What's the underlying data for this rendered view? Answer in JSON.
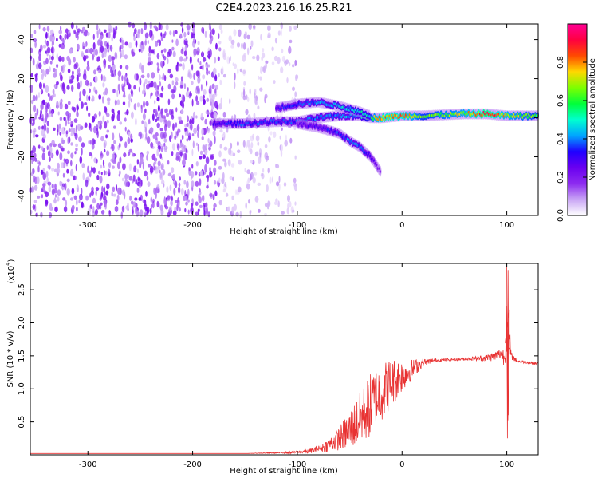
{
  "title": "C2E4.2023.216.16.25.R21",
  "chart_data": [
    {
      "type": "heatmap",
      "xlabel": "Height of straight line (km)",
      "ylabel": "Frequency (Hz)",
      "xlim": [
        -355,
        130
      ],
      "ylim": [
        -50,
        48
      ],
      "xticks": [
        -300,
        -200,
        -100,
        0,
        100
      ],
      "yticks": [
        -40,
        -20,
        0,
        20,
        40
      ],
      "colorbar": {
        "label": "Normalized spectral amplitude",
        "range": [
          0,
          1
        ],
        "ticks": [
          "0.0",
          "0.2",
          "0.4",
          "0.6",
          "0.8"
        ],
        "tick_values": [
          0,
          0.2,
          0.4,
          0.6,
          0.8
        ]
      },
      "colormap": [
        "#ffffff",
        "#c9a5f5",
        "#8d2bf0",
        "#6a00f0",
        "#1f00ff",
        "#00a6ff",
        "#00ffd0",
        "#00ff3a",
        "#7dff00",
        "#ffd800",
        "#ff4a00",
        "#ff0040",
        "#ff0095"
      ],
      "features": [
        {
          "name": "noise",
          "x_range": [
            -355,
            -175
          ],
          "freq_range": [
            -50,
            48
          ],
          "amplitude": 0.15
        },
        {
          "name": "faint-noise",
          "x_range": [
            -175,
            -100
          ],
          "freq_range": [
            -50,
            48
          ],
          "amplitude": 0.07
        },
        {
          "name": "main-track",
          "x": [
            -180,
            -150,
            -120,
            -100,
            -80,
            -60,
            -40,
            -30,
            -20,
            0,
            20,
            60,
            80,
            100,
            130
          ],
          "freq": [
            -3,
            -3,
            -2,
            -2,
            0,
            1,
            1,
            0,
            0,
            1,
            1,
            2,
            2,
            1,
            1
          ],
          "amplitude": [
            0.3,
            0.35,
            0.35,
            0.35,
            0.4,
            0.4,
            0.45,
            0.6,
            0.8,
            0.8,
            0.6,
            0.7,
            0.9,
            0.7,
            0.6
          ]
        },
        {
          "name": "upper-branch",
          "x": [
            -120,
            -100,
            -80,
            -60,
            -40,
            -30
          ],
          "freq": [
            5,
            7,
            8,
            6,
            3,
            1
          ],
          "amplitude": [
            0.3,
            0.35,
            0.4,
            0.45,
            0.5,
            0.5
          ]
        },
        {
          "name": "lower-branch",
          "x": [
            -100,
            -80,
            -60,
            -50,
            -40,
            -30,
            -20
          ],
          "freq": [
            -3,
            -5,
            -8,
            -12,
            -15,
            -20,
            -28
          ],
          "amplitude": [
            0.25,
            0.3,
            0.35,
            0.4,
            0.4,
            0.3,
            0.15
          ]
        }
      ]
    },
    {
      "type": "line",
      "xlabel": "Height of straight line (km)",
      "ylabel": "SNR (10 * v/v)",
      "y_multiplier": "(x10",
      "y_exponent": "4",
      "y_multiplier_close": ")",
      "xlim": [
        -355,
        130
      ],
      "ylim": [
        0,
        2.9
      ],
      "xticks": [
        -300,
        -200,
        -100,
        0,
        100
      ],
      "yticks": [
        0.5,
        1.0,
        1.5,
        2.0,
        2.5
      ],
      "ytick_labels": [
        "0.5",
        "1.0",
        "1.5",
        "2.0",
        "2.5"
      ],
      "color": "#e83232",
      "series": [
        {
          "x": [
            -355,
            -300,
            -250,
            -200,
            -150,
            -120,
            -100,
            -90,
            -80,
            -70,
            -60,
            -50,
            -40,
            -30,
            -20,
            -10,
            0,
            10,
            20,
            30,
            40,
            60,
            80,
            90,
            95,
            98,
            100,
            101,
            102,
            104,
            110,
            120,
            130
          ],
          "y": [
            0.02,
            0.02,
            0.02,
            0.02,
            0.02,
            0.03,
            0.04,
            0.05,
            0.09,
            0.15,
            0.25,
            0.38,
            0.55,
            0.75,
            0.95,
            1.1,
            1.2,
            1.3,
            1.4,
            1.43,
            1.44,
            1.45,
            1.47,
            1.5,
            1.55,
            1.45,
            2.2,
            0.3,
            1.9,
            1.5,
            1.42,
            1.4,
            1.38
          ],
          "envelope": [
            0,
            0,
            0,
            0,
            0,
            0.01,
            0.02,
            0.03,
            0.05,
            0.1,
            0.18,
            0.3,
            0.4,
            0.5,
            0.45,
            0.38,
            0.25,
            0.15,
            0.06,
            0.03,
            0.02,
            0.02,
            0.05,
            0.08,
            0.1,
            0.15,
            0.6,
            0.2,
            0.5,
            0.06,
            0.02,
            0.02,
            0.02
          ]
        }
      ]
    }
  ]
}
